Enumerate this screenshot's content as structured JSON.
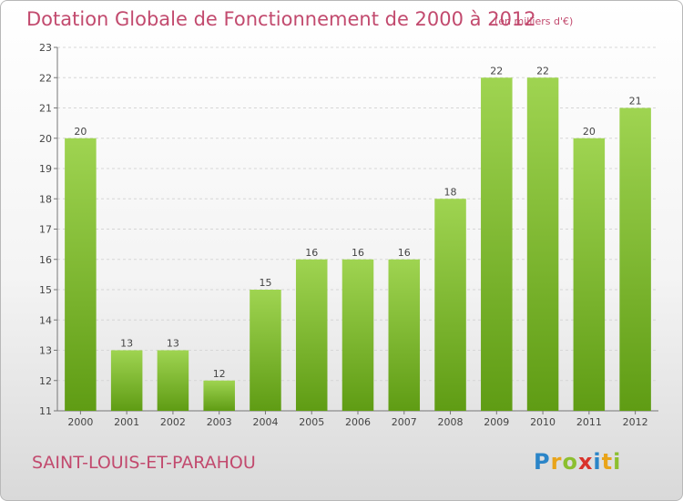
{
  "header": {
    "title": "Dotation Globale de Fonctionnement de 2000 à 2012",
    "unit": "(en milliers d'€)"
  },
  "footer": {
    "commune": "SAINT-LOUIS-ET-PARAHOU",
    "logo": [
      "P",
      "r",
      "o",
      "x",
      "i",
      "t",
      "i"
    ]
  },
  "colors": {
    "title": "#c24a6e",
    "bar_top": "#9fd451",
    "bar_bottom": "#5f9c14",
    "logo": [
      "#2b85c8",
      "#e9a41a",
      "#8cbf2f",
      "#d9332b",
      "#2b85c8",
      "#e9a41a",
      "#8cbf2f"
    ]
  },
  "chart_data": {
    "type": "bar",
    "categories": [
      "2000",
      "2001",
      "2002",
      "2003",
      "2004",
      "2005",
      "2006",
      "2007",
      "2008",
      "2009",
      "2010",
      "2011",
      "2012"
    ],
    "values": [
      20,
      13,
      13,
      12,
      15,
      16,
      16,
      16,
      18,
      22,
      22,
      20,
      21
    ],
    "ylim": [
      11,
      23
    ],
    "yticks": [
      11,
      12,
      13,
      14,
      15,
      16,
      17,
      18,
      19,
      20,
      21,
      22,
      23
    ],
    "grid": true
  }
}
